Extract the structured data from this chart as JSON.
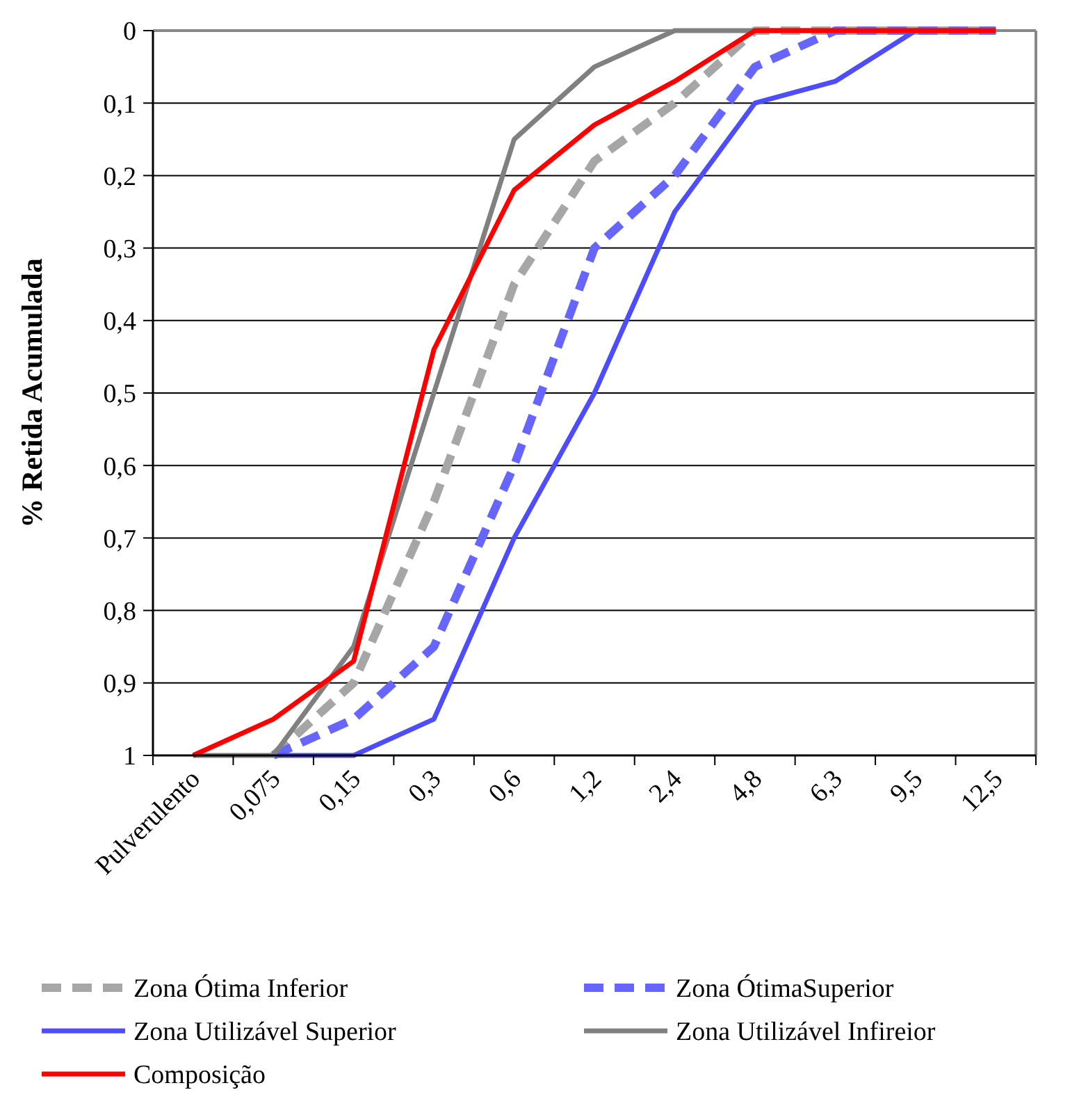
{
  "chart_data": {
    "type": "line",
    "ylabel": "% Retida Acumulada",
    "categories": [
      "Pulverulento",
      "0,075",
      "0,15",
      "0,3",
      "0,6",
      "1,2",
      "2,4",
      "4,8",
      "6,3",
      "9,5",
      "12,5"
    ],
    "ylim": [
      1,
      0
    ],
    "yticks": [
      0,
      {
        "value": 0.1,
        "label": "0,1"
      },
      {
        "value": 0.2,
        "label": "0,2"
      },
      {
        "value": 0.3,
        "label": "0,3"
      },
      {
        "value": 0.4,
        "label": "0,4"
      },
      {
        "value": 0.5,
        "label": "0,5"
      },
      {
        "value": 0.6,
        "label": "0,6"
      },
      {
        "value": 0.7,
        "label": "0,7"
      },
      {
        "value": 0.8,
        "label": "0,8"
      },
      {
        "value": 0.9,
        "label": "0,9"
      },
      1
    ],
    "grid": "y",
    "legend": "bottom",
    "marker": "none",
    "series": [
      {
        "name": "Zona Ótima Inferior",
        "color": "#a6a6a6",
        "line_style": "dashed",
        "values": [
          null,
          1,
          0.9,
          0.65,
          0.35,
          0.18,
          0.1,
          0,
          0,
          0,
          0
        ]
      },
      {
        "name": "Zona ÓtimaSuperior",
        "color": "#6666ff",
        "line_style": "dashed",
        "values": [
          null,
          1,
          0.95,
          0.85,
          0.6,
          0.3,
          0.2,
          0.05,
          0,
          0,
          0
        ]
      },
      {
        "name": "Zona Utilizável Superior",
        "color": "#4d4dff",
        "line_style": "solid",
        "values": [
          null,
          1,
          1,
          0.95,
          0.7,
          0.5,
          0.25,
          0.1,
          0.07,
          0,
          0
        ]
      },
      {
        "name": "Zona Utilizável Infireior",
        "color": "#808080",
        "line_style": "solid",
        "values": [
          1,
          1,
          0.85,
          0.5,
          0.15,
          0.05,
          0,
          0,
          0,
          0,
          0
        ]
      },
      {
        "name": "Composição",
        "color": "#ff0000",
        "line_style": "solid",
        "values": [
          1,
          0.95,
          0.87,
          0.44,
          0.22,
          0.13,
          0.07,
          0,
          0,
          0,
          0
        ]
      }
    ]
  }
}
